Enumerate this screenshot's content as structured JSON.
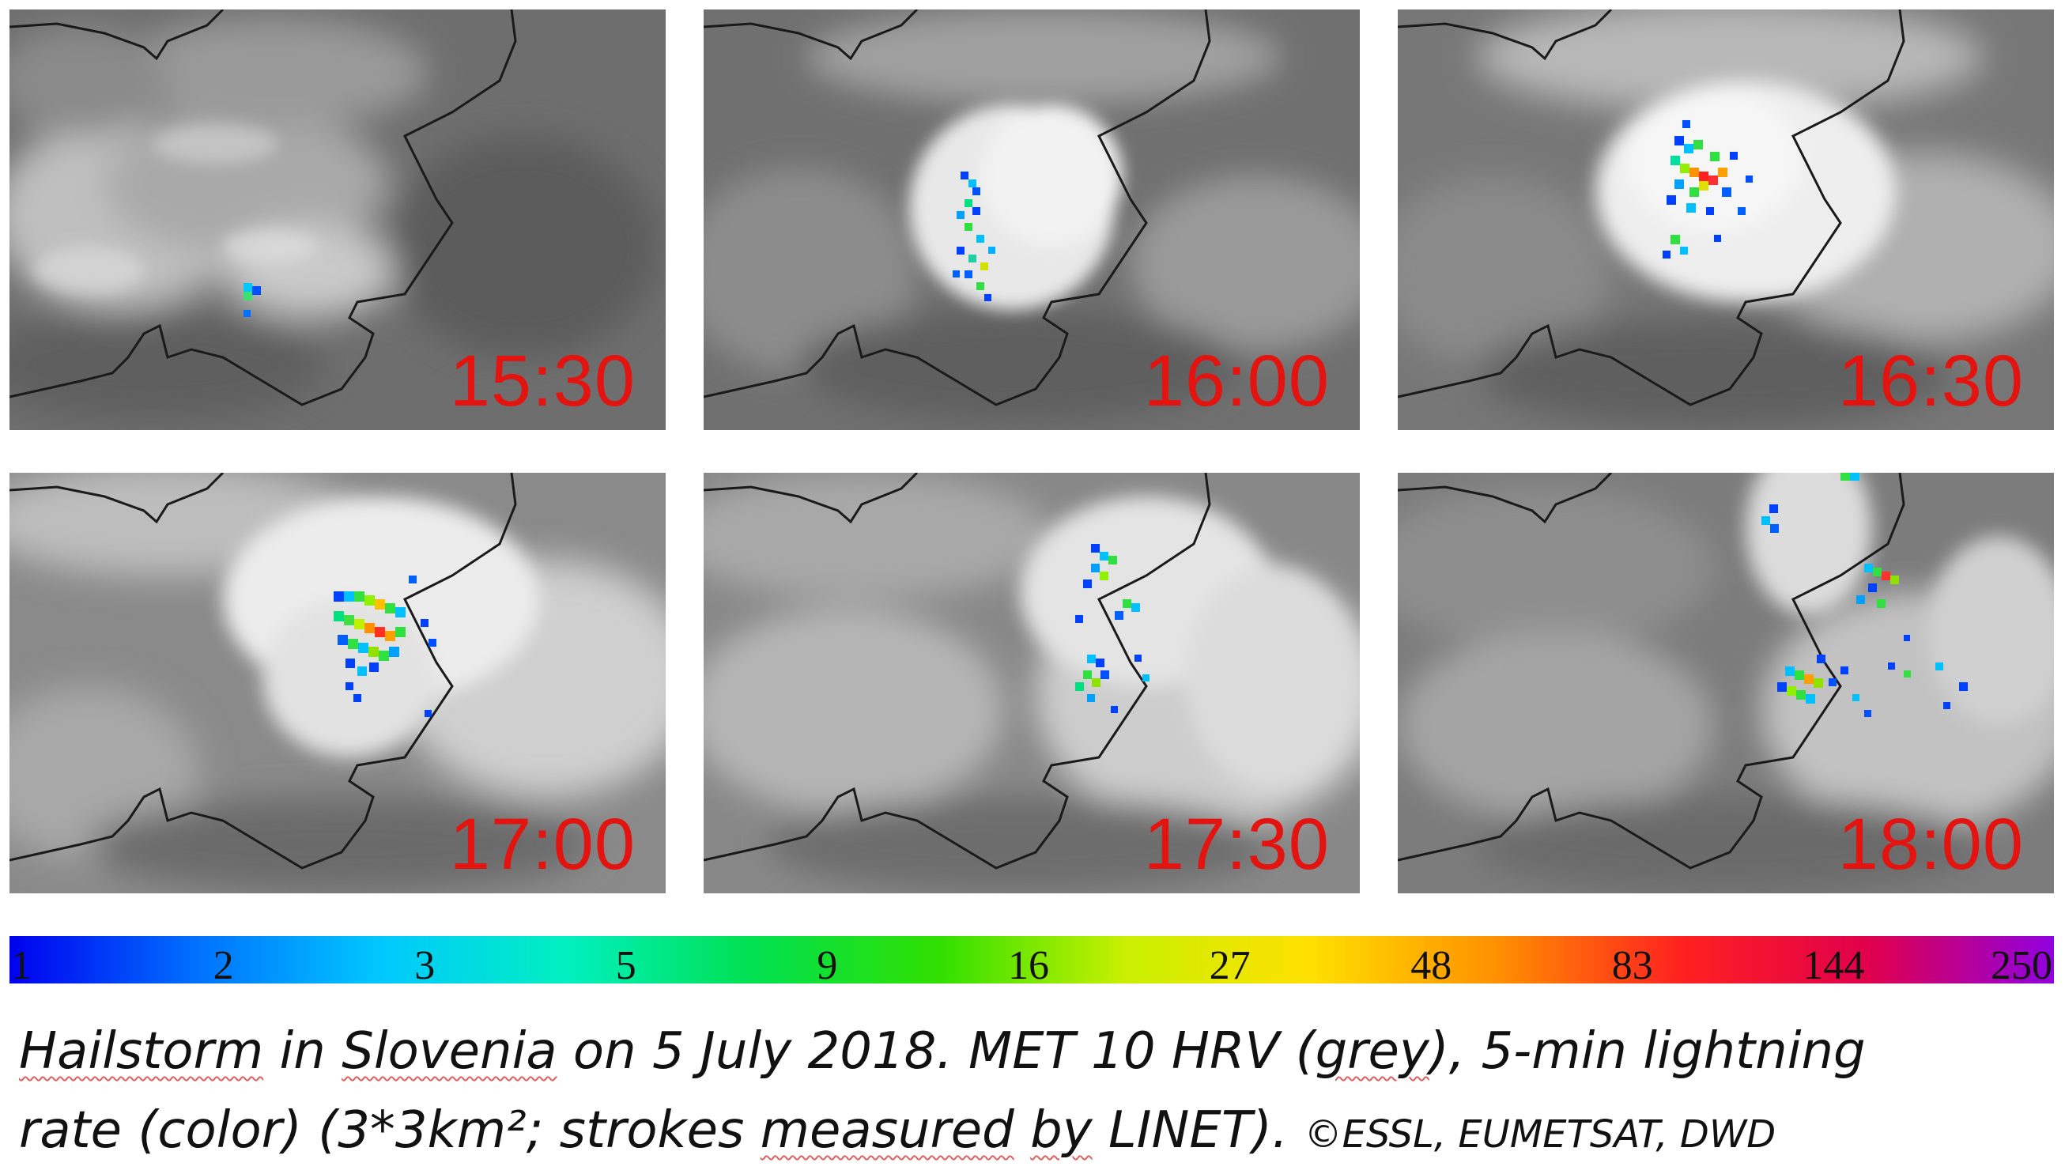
{
  "panels": [
    {
      "time": "15:30"
    },
    {
      "time": "16:00"
    },
    {
      "time": "16:30"
    },
    {
      "time": "17:00"
    },
    {
      "time": "17:30"
    },
    {
      "time": "18:00"
    }
  ],
  "colorbar": {
    "ticks": [
      "1",
      "2",
      "3",
      "5",
      "9",
      "16",
      "27",
      "48",
      "83",
      "144",
      "250"
    ],
    "colors": [
      "#0000ee",
      "#0070ff",
      "#00c8ff",
      "#00f0c0",
      "#00e050",
      "#30e000",
      "#c8f000",
      "#ffe000",
      "#ff9000",
      "#ff2020",
      "#e0004c",
      "#9000e0"
    ]
  },
  "caption": {
    "w1": "Hailstorm",
    "w2": " in ",
    "w3": "Slovenia",
    "w4": " on 5 July 2018. MET 10 HRV (",
    "w5": "grey",
    "w6": "), 5-min lightning",
    "w7": "rate (color) (3*3km²; strokes ",
    "w8": "measured",
    "w9": " ",
    "w10": "by",
    "w11": " LINET). ",
    "credit": "©ESSL, EUMETSAT, DWD"
  }
}
